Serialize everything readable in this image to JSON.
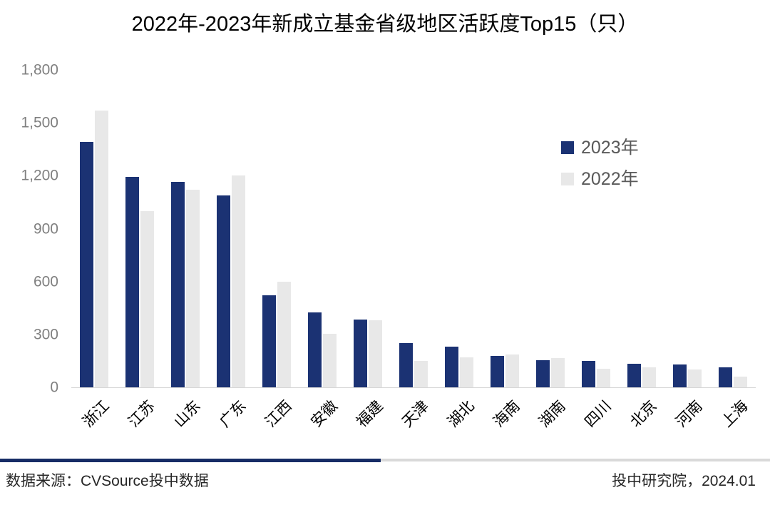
{
  "title": "2022年-2023年新成立基金省级地区活跃度Top15（只）",
  "chart_data": {
    "type": "bar",
    "categories": [
      "浙江",
      "江苏",
      "山东",
      "广东",
      "江西",
      "安徽",
      "福建",
      "天津",
      "湖北",
      "海南",
      "湖南",
      "四川",
      "北京",
      "河南",
      "上海"
    ],
    "series": [
      {
        "name": "2023年",
        "color": "#1b3273",
        "values": [
          1390,
          1195,
          1165,
          1090,
          520,
          425,
          385,
          250,
          230,
          180,
          155,
          150,
          135,
          130,
          115
        ]
      },
      {
        "name": "2022年",
        "color": "#e8e8e8",
        "values": [
          1570,
          1000,
          1120,
          1200,
          600,
          305,
          380,
          150,
          170,
          185,
          165,
          105,
          115,
          100,
          60
        ]
      }
    ],
    "title": "2022年-2023年新成立基金省级地区活跃度Top15（只）",
    "xlabel": "",
    "ylabel": "",
    "ylim": [
      0,
      1800
    ],
    "yticks": [
      0,
      300,
      600,
      900,
      1200,
      1500,
      1800
    ],
    "ytick_labels": [
      "0",
      "300",
      "600",
      "900",
      "1,200",
      "1,500",
      "1,800"
    ],
    "legend_position": "top-right",
    "grid": false
  },
  "footer": {
    "source": "数据来源：CVSource投中数据",
    "credit": "投中研究院，2024.01"
  },
  "colors": {
    "bar_2023": "#1b3273",
    "bar_2022": "#e8e8e8",
    "divider_navy": "#172c66",
    "divider_gray": "#d9d9d9",
    "axis_line": "#d6d6d6",
    "ytick_text": "#808080",
    "legend_text": "#595959",
    "footer_text": "#262626"
  }
}
